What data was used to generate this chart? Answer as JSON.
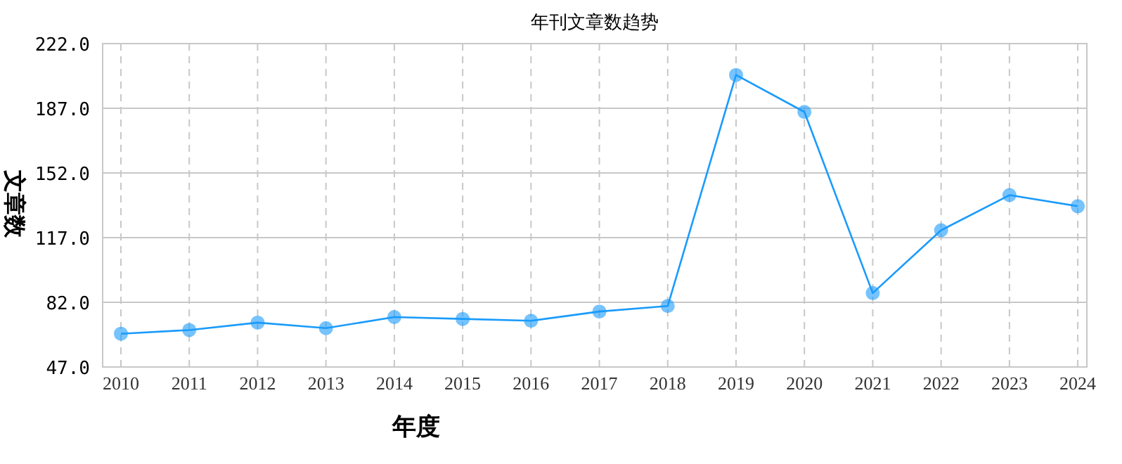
{
  "chart_data": {
    "type": "line",
    "title": "年刊文章数趋势",
    "xlabel": "年度",
    "ylabel": "文章数",
    "categories": [
      "2010",
      "2011",
      "2012",
      "2013",
      "2014",
      "2015",
      "2016",
      "2017",
      "2018",
      "2019",
      "2020",
      "2021",
      "2022",
      "2023",
      "2024"
    ],
    "series": [
      {
        "color": "#1a9bfc",
        "values": [
          65,
          67,
          71,
          68,
          74,
          73,
          72,
          77,
          80,
          205,
          185,
          87,
          121,
          140,
          134
        ]
      }
    ],
    "ylim": [
      47,
      222
    ],
    "yticks": [
      {
        "value": 47,
        "label": "47.0"
      },
      {
        "value": 82,
        "label": "82.0"
      },
      {
        "value": 117,
        "label": "117.0"
      },
      {
        "value": 152,
        "label": "152.0"
      },
      {
        "value": 187,
        "label": "187.0"
      },
      {
        "value": 222,
        "label": "222.0"
      }
    ],
    "grid": true,
    "marker": "circle",
    "line_style": "solid"
  }
}
